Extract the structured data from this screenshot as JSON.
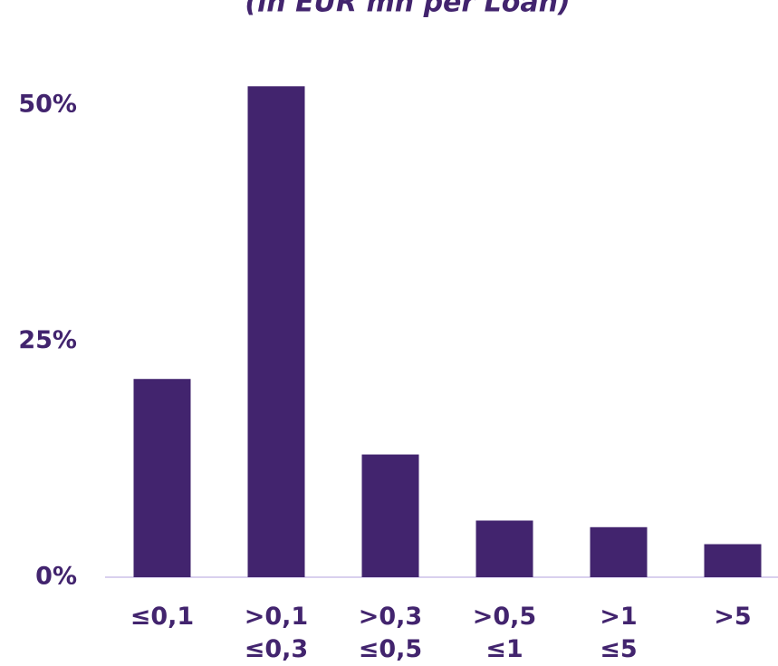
{
  "chart_data": {
    "type": "bar",
    "title": "(in EUR mn per Loan)",
    "categories": [
      "≤0,1",
      ">0,1\n≤0,3",
      ">0,3\n≤0,5",
      ">0,5\n≤1",
      ">1\n≤5",
      ">5"
    ],
    "values": [
      21,
      52,
      13,
      6,
      5.3,
      3.5
    ],
    "color": "#42246e",
    "ylim": [
      0,
      55
    ],
    "yticks": [
      {
        "value": 0,
        "label": "0%"
      },
      {
        "value": 25,
        "label": "25%"
      },
      {
        "value": 50,
        "label": "50%"
      }
    ],
    "grid": false
  }
}
